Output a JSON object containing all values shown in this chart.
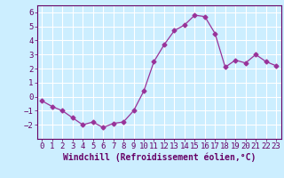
{
  "x": [
    0,
    1,
    2,
    3,
    4,
    5,
    6,
    7,
    8,
    9,
    10,
    11,
    12,
    13,
    14,
    15,
    16,
    17,
    18,
    19,
    20,
    21,
    22,
    23
  ],
  "y": [
    -0.3,
    -0.7,
    -1.0,
    -1.5,
    -2.0,
    -1.8,
    -2.2,
    -1.9,
    -1.8,
    -1.0,
    0.4,
    2.5,
    3.7,
    4.7,
    5.1,
    5.8,
    5.7,
    4.5,
    2.1,
    2.6,
    2.4,
    3.0,
    2.5,
    2.2
  ],
  "line_color": "#993399",
  "marker": "D",
  "marker_size": 2.5,
  "line_width": 0.9,
  "xlabel": "Windchill (Refroidissement éolien,°C)",
  "xlabel_fontsize": 7,
  "bg_color": "#cceeff",
  "grid_color": "#ffffff",
  "ylim": [
    -3,
    6.5
  ],
  "xlim": [
    -0.5,
    23.5
  ],
  "yticks": [
    -2,
    -1,
    0,
    1,
    2,
    3,
    4,
    5,
    6
  ],
  "xticks": [
    0,
    1,
    2,
    3,
    4,
    5,
    6,
    7,
    8,
    9,
    10,
    11,
    12,
    13,
    14,
    15,
    16,
    17,
    18,
    19,
    20,
    21,
    22,
    23
  ],
  "tick_fontsize": 6.5,
  "axis_color": "#660066"
}
